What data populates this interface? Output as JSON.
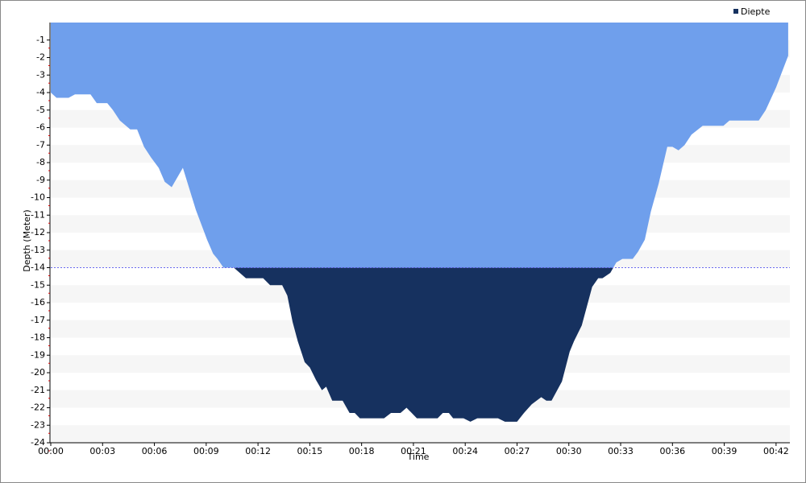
{
  "chart_data": {
    "type": "area",
    "x_label": "Time",
    "y_label": "Depth (Meter)",
    "x": [
      0,
      0.33,
      1.03,
      1.4,
      2.3,
      2.66,
      3.27,
      3.6,
      4.0,
      4.6,
      5.0,
      5.4,
      5.8,
      6.25,
      6.6,
      7.0,
      7.65,
      8.4,
      9.05,
      9.4,
      9.65,
      10.0,
      10.6,
      11.3,
      12.3,
      12.7,
      13.4,
      13.7,
      14.0,
      14.3,
      14.7,
      15.0,
      15.35,
      15.7,
      15.95,
      16.3,
      16.9,
      17.3,
      17.6,
      17.9,
      19.3,
      19.7,
      20.25,
      20.6,
      21.2,
      22.4,
      22.7,
      23.05,
      23.3,
      23.9,
      24.3,
      24.7,
      25.9,
      26.3,
      27.0,
      27.4,
      27.85,
      28.4,
      28.7,
      29.0,
      29.6,
      30.05,
      30.3,
      30.75,
      31.35,
      31.7,
      31.95,
      32.4,
      32.75,
      33.1,
      33.7,
      34.0,
      34.4,
      34.75,
      35.2,
      35.7,
      36.0,
      36.35,
      36.7,
      37.1,
      37.75,
      38.95,
      39.3,
      41.0,
      41.4,
      42.0,
      42.7
    ],
    "series": [
      {
        "name": "Diepte",
        "color": "#16315f",
        "upper_color": "#6f9fec",
        "values": [
          -4.0,
          -4.3,
          -4.3,
          -4.1,
          -4.1,
          -4.6,
          -4.6,
          -5.0,
          -5.6,
          -6.1,
          -6.1,
          -7.1,
          -7.7,
          -8.3,
          -9.1,
          -9.4,
          -8.3,
          -10.7,
          -12.4,
          -13.2,
          -13.5,
          -14.0,
          -14.0,
          -14.6,
          -14.6,
          -15.0,
          -15.0,
          -15.6,
          -17.1,
          -18.2,
          -19.4,
          -19.7,
          -20.4,
          -21.0,
          -20.8,
          -21.6,
          -21.6,
          -22.3,
          -22.3,
          -22.6,
          -22.6,
          -22.3,
          -22.3,
          -22.0,
          -22.6,
          -22.6,
          -22.3,
          -22.3,
          -22.6,
          -22.6,
          -22.8,
          -22.6,
          -22.6,
          -22.8,
          -22.8,
          -22.3,
          -21.8,
          -21.4,
          -21.6,
          -21.6,
          -20.5,
          -18.8,
          -18.2,
          -17.3,
          -15.1,
          -14.6,
          -14.6,
          -14.3,
          -13.7,
          -13.5,
          -13.5,
          -13.1,
          -12.4,
          -10.8,
          -9.2,
          -7.1,
          -7.1,
          -7.3,
          -7.0,
          -6.4,
          -5.9,
          -5.9,
          -5.6,
          -5.6,
          -5.0,
          -3.7,
          -1.9
        ]
      }
    ],
    "threshold": -14,
    "threshold_color": "#6b6bf0",
    "xlim": [
      0,
      42.8
    ],
    "ylim": [
      -24,
      0
    ],
    "xticks": [
      {
        "value": 0,
        "label": "00:00"
      },
      {
        "value": 3,
        "label": "00:03"
      },
      {
        "value": 6,
        "label": "00:06"
      },
      {
        "value": 9,
        "label": "00:09"
      },
      {
        "value": 12,
        "label": "00:12"
      },
      {
        "value": 15,
        "label": "00:15"
      },
      {
        "value": 18,
        "label": "00:18"
      },
      {
        "value": 21,
        "label": "00:21"
      },
      {
        "value": 24,
        "label": "00:24"
      },
      {
        "value": 27,
        "label": "00:27"
      },
      {
        "value": 30,
        "label": "00:30"
      },
      {
        "value": 33,
        "label": "00:33"
      },
      {
        "value": 36,
        "label": "00:36"
      },
      {
        "value": 39,
        "label": "00:39"
      },
      {
        "value": 42,
        "label": "00:42"
      }
    ],
    "yticks": [
      -1,
      -2,
      -3,
      -4,
      -5,
      -6,
      -7,
      -8,
      -9,
      -10,
      -11,
      -12,
      -13,
      -14,
      -15,
      -16,
      -17,
      -18,
      -19,
      -20,
      -21,
      -22,
      -23,
      -24
    ],
    "grid": "bands",
    "legend": "top-right"
  }
}
